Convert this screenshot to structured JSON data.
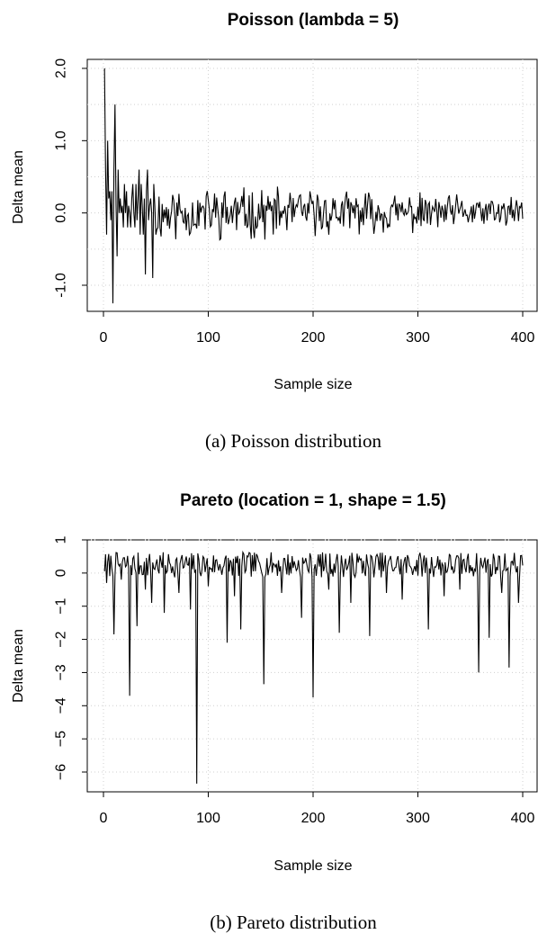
{
  "chart_data": [
    {
      "type": "line",
      "title": "Poisson (lambda = 5)",
      "xlabel": "Sample size",
      "ylabel": "Delta mean",
      "caption": "(a) Poisson distribution",
      "xlim": [
        0,
        400
      ],
      "ylim": [
        -1.4,
        2.1
      ],
      "xticks": [
        0,
        100,
        200,
        300,
        400
      ],
      "yticks": [
        2.0,
        1.0,
        0.0,
        -1.0
      ],
      "ytick_labels": [
        "2.0",
        "1.0",
        "0.0",
        "-1.0"
      ],
      "y_gridlines": [
        2.0,
        1.5,
        1.0,
        0.5,
        0.0,
        -0.5,
        -1.0
      ],
      "grid": true,
      "series": [
        {
          "points": [
            [
              1,
              2.0
            ],
            [
              2,
              0.6
            ],
            [
              3,
              -0.3
            ],
            [
              4,
              1.0
            ],
            [
              5,
              0.2
            ],
            [
              6,
              0.3
            ],
            [
              7,
              -0.1
            ],
            [
              8,
              0.3
            ],
            [
              9,
              -1.25
            ],
            [
              10,
              0.6
            ],
            [
              11,
              1.5
            ],
            [
              12,
              0.1
            ],
            [
              13,
              -0.6
            ],
            [
              14,
              0.6
            ],
            [
              15,
              0.0
            ],
            [
              16,
              0.2
            ],
            [
              17,
              0.0
            ],
            [
              18,
              0.1
            ],
            [
              19,
              -0.2
            ],
            [
              20,
              0.4
            ],
            [
              21,
              0.0
            ],
            [
              22,
              0.3
            ],
            [
              23,
              -0.2
            ],
            [
              24,
              0.1
            ],
            [
              25,
              0.0
            ],
            [
              26,
              -0.2
            ],
            [
              27,
              0.2
            ],
            [
              28,
              0.4
            ],
            [
              29,
              0.0
            ],
            [
              30,
              -0.2
            ],
            [
              31,
              0.4
            ],
            [
              32,
              -0.1
            ],
            [
              33,
              0.2
            ],
            [
              34,
              0.6
            ],
            [
              35,
              -0.3
            ],
            [
              36,
              0.4
            ],
            [
              37,
              0.1
            ],
            [
              38,
              -0.3
            ],
            [
              39,
              0.2
            ],
            [
              40,
              -0.85
            ],
            [
              41,
              0.3
            ],
            [
              42,
              0.6
            ],
            [
              43,
              -0.1
            ],
            [
              44,
              0.1
            ],
            [
              45,
              0.2
            ],
            [
              46,
              0.0
            ],
            [
              47,
              -0.9
            ],
            [
              48,
              0.4
            ],
            [
              49,
              0.1
            ],
            [
              50,
              -0.3
            ]
          ],
          "tail": {
            "x_start": 51,
            "x_end": 400,
            "step": 1,
            "amplitude_start": 0.32,
            "amplitude_end": 0.17,
            "min": -0.45,
            "max": 0.62,
            "seed": 11
          }
        }
      ]
    },
    {
      "type": "line",
      "title": "Pareto (location = 1, shape = 1.5)",
      "xlabel": "Sample size",
      "ylabel": "Delta mean",
      "caption": "(b) Pareto distribution",
      "xlim": [
        0,
        400
      ],
      "ylim": [
        -6.5,
        1.0
      ],
      "xticks": [
        0,
        100,
        200,
        300,
        400
      ],
      "yticks": [
        1,
        0,
        -1,
        -2,
        -3,
        -4,
        -5,
        -6
      ],
      "ytick_labels": [
        "1",
        "0",
        "−1",
        "−2",
        "−3",
        "−4",
        "−5",
        "−6"
      ],
      "y_gridlines": [
        1,
        0,
        -1,
        -2,
        -3,
        -4,
        -5,
        -6
      ],
      "reference_line_y": 1,
      "grid": true,
      "series": [
        {
          "baseline": {
            "x_start": 1,
            "x_end": 400,
            "step": 1,
            "center": 0.25,
            "amplitude": 0.38,
            "min": -0.6,
            "max": 0.7,
            "seed": 7
          },
          "spikes": [
            [
              3,
              -0.3
            ],
            [
              10,
              -1.85
            ],
            [
              17,
              -0.2
            ],
            [
              25,
              -3.7
            ],
            [
              32,
              -1.6
            ],
            [
              40,
              -0.5
            ],
            [
              46,
              -0.9
            ],
            [
              58,
              -1.2
            ],
            [
              72,
              -0.6
            ],
            [
              83,
              -1.1
            ],
            [
              89,
              -6.35
            ],
            [
              100,
              -0.4
            ],
            [
              118,
              -2.1
            ],
            [
              125,
              -0.7
            ],
            [
              131,
              -1.7
            ],
            [
              153,
              -3.35
            ],
            [
              170,
              -0.6
            ],
            [
              189,
              -1.35
            ],
            [
              200,
              -3.75
            ],
            [
              215,
              -0.5
            ],
            [
              225,
              -1.8
            ],
            [
              236,
              -0.9
            ],
            [
              254,
              -1.9
            ],
            [
              270,
              -0.6
            ],
            [
              285,
              -0.8
            ],
            [
              310,
              -1.7
            ],
            [
              325,
              -0.7
            ],
            [
              340,
              -0.5
            ],
            [
              358,
              -3.0
            ],
            [
              368,
              -1.95
            ],
            [
              380,
              -0.6
            ],
            [
              387,
              -2.85
            ],
            [
              396,
              -0.9
            ]
          ]
        }
      ]
    }
  ]
}
